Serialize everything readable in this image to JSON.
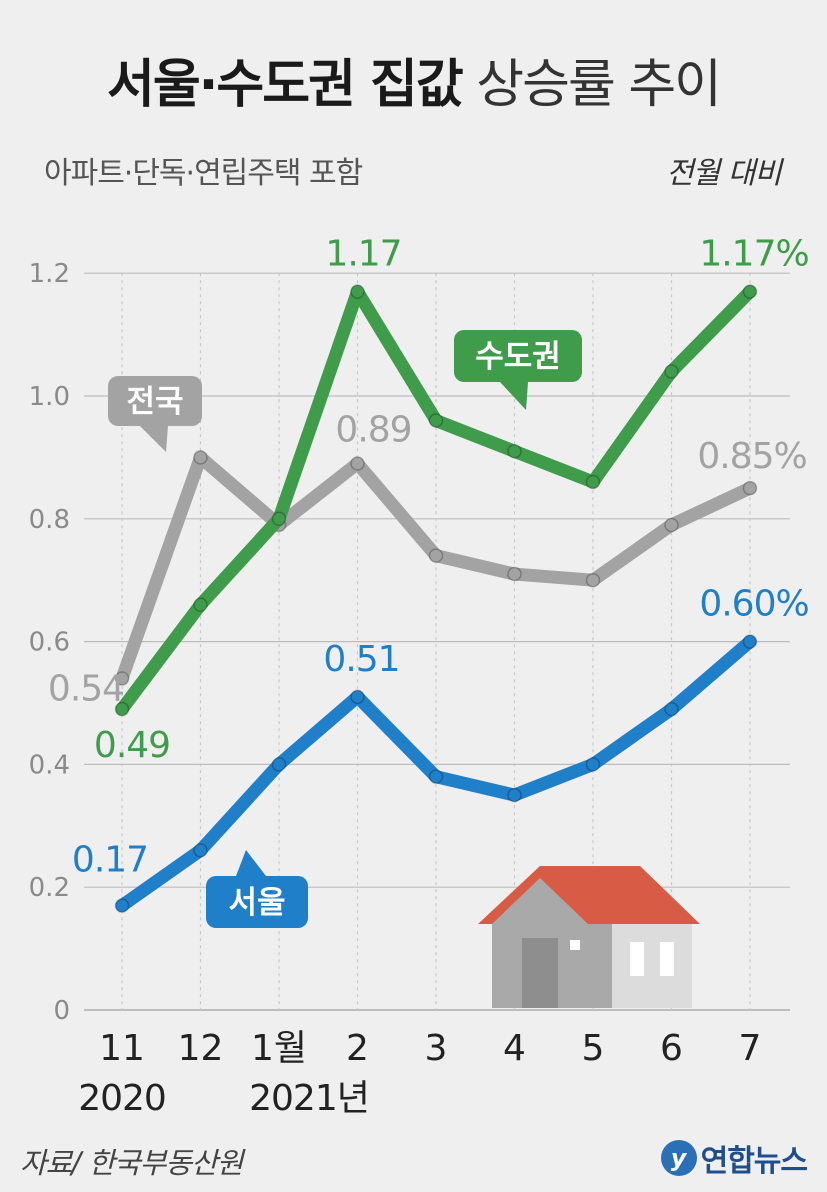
{
  "header": {
    "title_bold": "서울·수도권 집값",
    "title_light": "상승률 추이",
    "subtitle": "아파트·단독·연립주택 포함",
    "unit": "전월 대비"
  },
  "footer": {
    "source": "자료/ 한국부동산원",
    "logo_text": "연합뉴스"
  },
  "chart_data": {
    "type": "line",
    "categories": [
      "11",
      "12",
      "1월",
      "2",
      "3",
      "4",
      "5",
      "6",
      "7"
    ],
    "year_labels": [
      {
        "index": 0,
        "text": "2020"
      },
      {
        "index": 2,
        "text": "2021년"
      }
    ],
    "ylim": [
      0,
      1.2
    ],
    "yticks": [
      {
        "value": 0,
        "label": "0"
      },
      {
        "value": 0.2,
        "label": "0.2"
      },
      {
        "value": 0.4,
        "label": "0.4"
      },
      {
        "value": 0.6,
        "label": "0.6"
      },
      {
        "value": 0.8,
        "label": "0.8"
      },
      {
        "value": 1.0,
        "label": "1.0"
      },
      {
        "value": 1.2,
        "label": "1.2"
      }
    ],
    "grid": true,
    "series": [
      {
        "name": "전국",
        "color": "#a3a3a3",
        "values": [
          0.54,
          0.9,
          0.79,
          0.89,
          0.74,
          0.71,
          0.7,
          0.79,
          0.85
        ],
        "labels": [
          {
            "index": 0,
            "text": "0.54"
          },
          {
            "index": 3,
            "text": "0.89"
          },
          {
            "index": 8,
            "text": "0.85%"
          }
        ]
      },
      {
        "name": "수도권",
        "color": "#3e9c4a",
        "values": [
          0.49,
          0.66,
          0.8,
          1.17,
          0.96,
          0.91,
          0.86,
          1.04,
          1.17
        ],
        "labels": [
          {
            "index": 0,
            "text": "0.49"
          },
          {
            "index": 3,
            "text": "1.17"
          },
          {
            "index": 8,
            "text": "1.17%"
          }
        ]
      },
      {
        "name": "서울",
        "color": "#1f7fc8",
        "values": [
          0.17,
          0.26,
          0.4,
          0.51,
          0.38,
          0.35,
          0.4,
          0.49,
          0.6
        ],
        "labels": [
          {
            "index": 0,
            "text": "0.17"
          },
          {
            "index": 3,
            "text": "0.51"
          },
          {
            "index": 8,
            "text": "0.60%"
          }
        ]
      }
    ]
  }
}
